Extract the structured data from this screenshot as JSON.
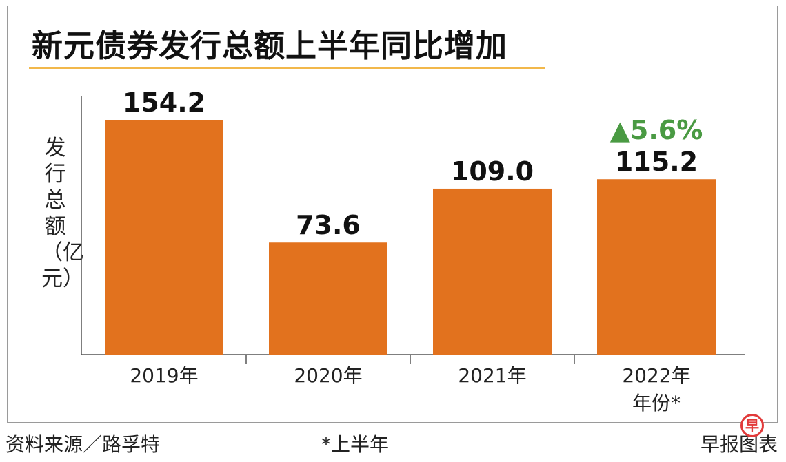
{
  "title": "新元债券发行总额上半年同比增加",
  "footer": {
    "source": "资料来源／路孚特",
    "note": "*上半年",
    "credit": "早报图表",
    "logo_char": "早"
  },
  "colors": {
    "bar": "#e2721e",
    "growth": "#4a9a43",
    "axis": "#555555",
    "text": "#111111",
    "title_rule": "#f2b84b"
  },
  "chart_data": {
    "type": "bar",
    "title": "新元债券发行总额上半年同比增加",
    "categories": [
      "2019年",
      "2020年",
      "2021年",
      "2022年"
    ],
    "values": [
      154.2,
      73.6,
      109.0,
      115.2
    ],
    "value_labels": [
      "154.2",
      "73.6",
      "109.0",
      "115.2"
    ],
    "xlabel": "年份*",
    "ylabel": "发行总额（亿元）",
    "ylim": [
      0,
      160
    ],
    "grid": false,
    "annotations": [
      {
        "category": "2022年",
        "text": "▲5.6%"
      }
    ]
  }
}
